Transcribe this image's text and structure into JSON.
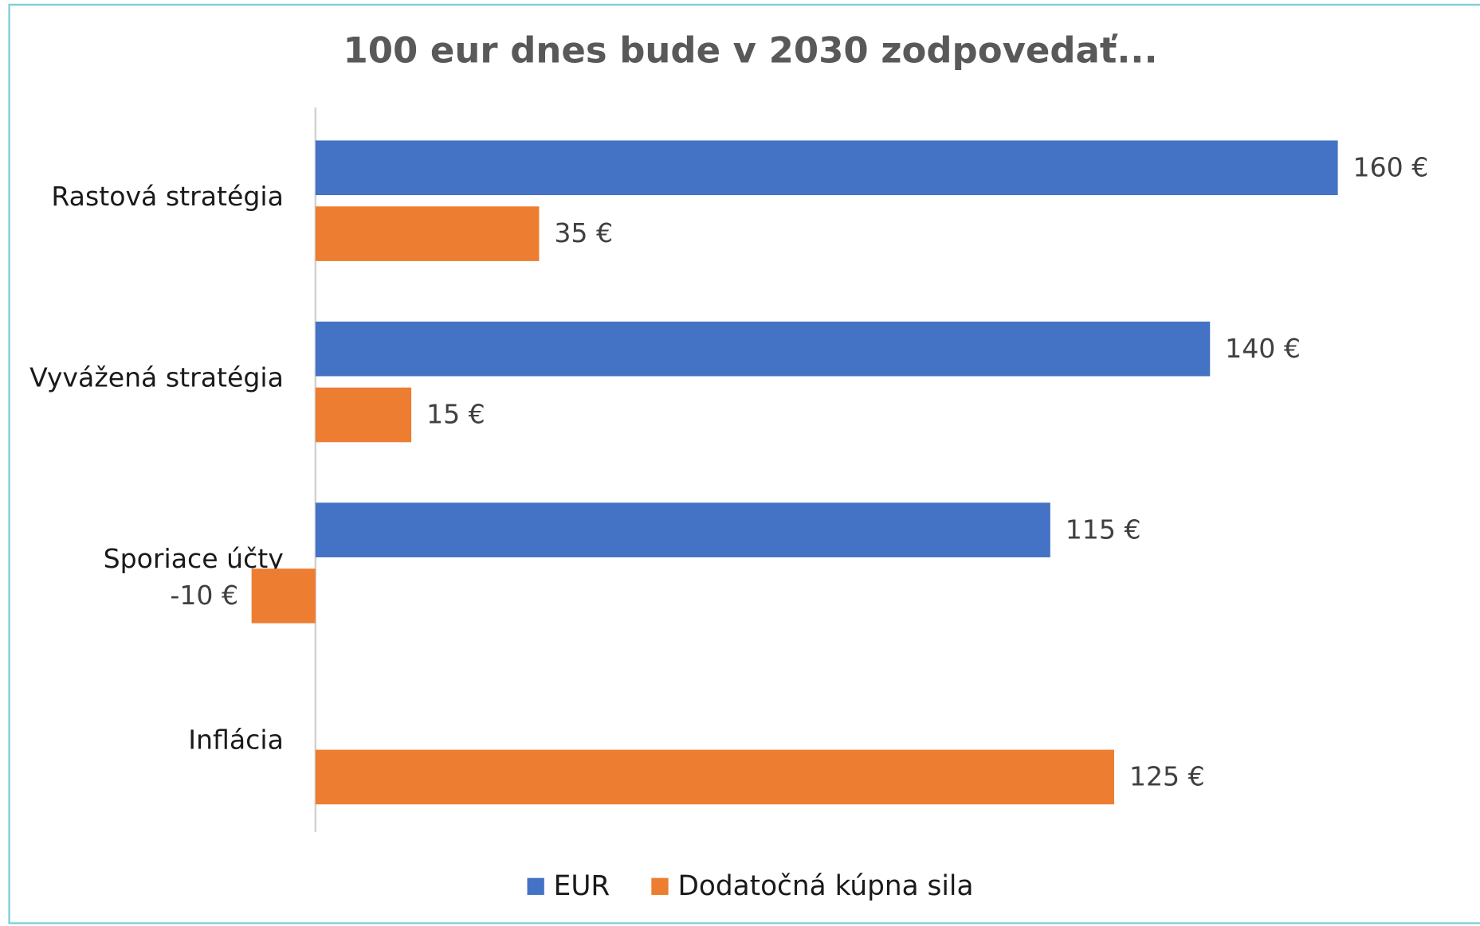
{
  "chart_data": {
    "type": "bar",
    "orientation": "horizontal",
    "title": "100 eur dnes bude v 2030 zodpovedať...",
    "categories": [
      "Rastová stratégia",
      "Vyvážená stratégia",
      "Sporiace účty",
      "Inflácia"
    ],
    "series": [
      {
        "name": "EUR",
        "color": "#4472c4",
        "values": [
          160,
          140,
          115,
          null
        ],
        "value_labels": [
          "160 €",
          "140 €",
          "115 €",
          null
        ]
      },
      {
        "name": "Dodatočná kúpna sila",
        "color": "#ed7d31",
        "values": [
          35,
          15,
          -10,
          125
        ],
        "value_labels": [
          "35 €",
          "15 €",
          "-10 €",
          "125 €"
        ]
      }
    ],
    "xlim": [
      -10,
      160
    ],
    "grid": false,
    "legend": "bottom"
  }
}
